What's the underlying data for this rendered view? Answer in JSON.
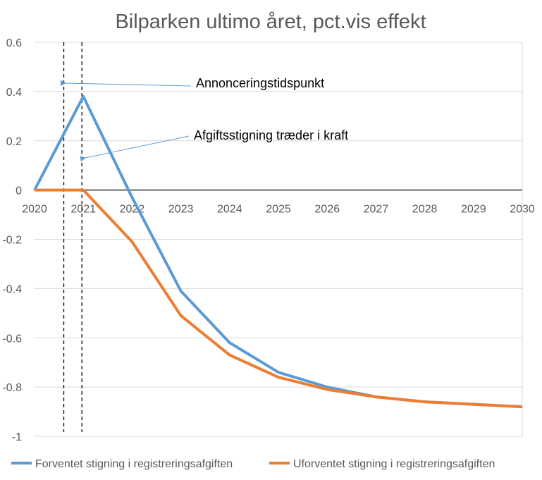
{
  "chart_data": {
    "type": "line",
    "title": "Bilparken ultimo året, pct.vis effekt",
    "x": [
      2020,
      2021,
      2022,
      2023,
      2024,
      2025,
      2026,
      2027,
      2028,
      2029,
      2030
    ],
    "xlim": [
      2020,
      2030
    ],
    "ylim": [
      -1,
      0.6
    ],
    "yticks": [
      0.6,
      0.4,
      0.2,
      0,
      -0.2,
      -0.4,
      -0.6,
      -0.8,
      -1
    ],
    "grid": true,
    "legend_position": "bottom",
    "series": [
      {
        "name": "Forventet stigning i registreringsafgiften",
        "color": "#5b9bd5",
        "values": [
          0,
          0.38,
          -0.03,
          -0.41,
          -0.62,
          -0.74,
          -0.8,
          -0.84,
          -0.86,
          -0.87,
          -0.88
        ]
      },
      {
        "name": "Uforventet stigning i registreringsafgiften",
        "color": "#ed7d31",
        "values": [
          0,
          0,
          -0.21,
          -0.51,
          -0.67,
          -0.76,
          -0.81,
          -0.84,
          -0.86,
          -0.87,
          -0.88
        ]
      }
    ],
    "vertical_markers": [
      {
        "x": 2020.6,
        "label": "Annonceringstidspunkt"
      },
      {
        "x": 2021.0,
        "label": "Afgiftsstigning træder i kraft"
      }
    ],
    "annotation_color": "#5b9bd5"
  }
}
